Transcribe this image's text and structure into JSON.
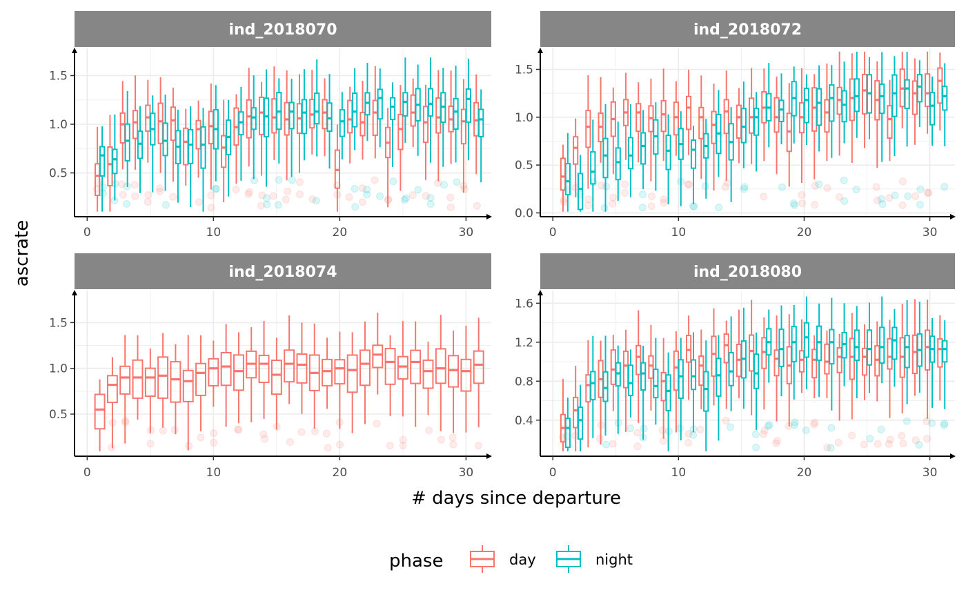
{
  "chart_data": {
    "type": "boxplot",
    "xlabel": "# days since departure",
    "ylabel": "ascrate",
    "legend": {
      "title": "phase",
      "placement": "bottom",
      "entries": [
        {
          "name": "day",
          "color": "#F8766D"
        },
        {
          "name": "night",
          "color": "#00BFC4"
        }
      ]
    },
    "grid": true,
    "x_ticks": [
      0,
      10,
      20,
      30
    ],
    "panels": [
      {
        "title": "ind_2018070",
        "xlim": [
          -1,
          32
        ],
        "ylim": [
          0.05,
          1.78
        ],
        "y_ticks": [
          0.5,
          1.0,
          1.5
        ],
        "y_tick_labels": [
          "0.5",
          "1.0",
          "1.5"
        ],
        "series": [
          {
            "name": "day",
            "x": [
              1,
              2,
              3,
              4,
              5,
              6,
              7,
              8,
              9,
              10,
              11,
              12,
              13,
              14,
              15,
              16,
              17,
              18,
              19,
              20,
              21,
              22,
              23,
              24,
              25,
              26,
              27,
              28,
              29,
              30,
              31
            ],
            "median": [
              0.47,
              0.59,
              1.0,
              1.02,
              1.07,
              1.03,
              1.04,
              0.82,
              0.95,
              0.98,
              0.76,
              0.97,
              1.08,
              1.12,
              1.07,
              1.05,
              1.06,
              1.1,
              1.12,
              0.53,
              1.05,
              1.02,
              1.12,
              0.81,
              0.95,
              1.12,
              1.02,
              1.07,
              1.05,
              1.03,
              1.04
            ]
          },
          {
            "name": "night",
            "x": [
              1,
              2,
              3,
              4,
              5,
              6,
              7,
              8,
              9,
              10,
              11,
              12,
              13,
              14,
              15,
              16,
              17,
              18,
              19,
              20,
              21,
              22,
              23,
              24,
              25,
              26,
              27,
              28,
              29,
              30,
              31
            ],
            "median": [
              0.68,
              0.64,
              0.83,
              0.8,
              0.95,
              0.83,
              0.77,
              0.79,
              0.79,
              0.95,
              0.87,
              1.02,
              1.07,
              1.08,
              1.13,
              1.13,
              1.12,
              1.13,
              1.06,
              1.03,
              1.13,
              1.22,
              1.27,
              1.18,
              1.23,
              1.2,
              1.21,
              1.18,
              1.13,
              1.26,
              1.05
            ]
          }
        ]
      },
      {
        "title": "ind_2018072",
        "xlim": [
          -1,
          32
        ],
        "ylim": [
          -0.04,
          1.72
        ],
        "y_ticks": [
          0.0,
          0.5,
          1.0,
          1.5
        ],
        "y_tick_labels": [
          "0.0",
          "0.5",
          "1.0",
          "1.5"
        ],
        "series": [
          {
            "name": "day",
            "x": [
              1,
              2,
              3,
              4,
              5,
              6,
              7,
              8,
              9,
              10,
              11,
              12,
              13,
              14,
              15,
              16,
              17,
              18,
              19,
              20,
              21,
              22,
              23,
              24,
              25,
              26,
              27,
              28,
              29,
              30,
              31
            ],
            "median": [
              0.38,
              0.68,
              0.9,
              0.9,
              0.98,
              1.05,
              1.05,
              0.99,
              1.03,
              1.0,
              1.1,
              1.0,
              0.92,
              1.06,
              1.0,
              1.0,
              1.1,
              1.0,
              0.85,
              1.0,
              1.1,
              1.05,
              1.18,
              1.2,
              1.28,
              1.18,
              0.98,
              1.3,
              1.25,
              1.25,
              1.38
            ]
          },
          {
            "name": "night",
            "x": [
              1,
              2,
              3,
              4,
              5,
              6,
              7,
              8,
              9,
              10,
              11,
              12,
              13,
              14,
              15,
              16,
              17,
              18,
              19,
              20,
              21,
              22,
              23,
              24,
              25,
              26,
              27,
              28,
              29,
              30,
              31
            ],
            "median": [
              0.33,
              0.25,
              0.43,
              0.6,
              0.53,
              0.6,
              0.7,
              0.8,
              0.65,
              0.72,
              0.66,
              0.7,
              0.83,
              0.74,
              0.9,
              1.0,
              1.1,
              1.08,
              1.2,
              1.18,
              1.15,
              1.2,
              1.13,
              1.22,
              1.25,
              1.22,
              1.25,
              1.3,
              1.32,
              1.12,
              1.22
            ]
          }
        ]
      },
      {
        "title": "ind_2018074",
        "xlim": [
          -1,
          32
        ],
        "ylim": [
          0.04,
          1.85
        ],
        "y_ticks": [
          0.5,
          1.0,
          1.5
        ],
        "y_tick_labels": [
          "0.5",
          "1.0",
          "1.5"
        ],
        "series": [
          {
            "name": "day",
            "x": [
              1,
              2,
              3,
              4,
              5,
              6,
              7,
              8,
              9,
              10,
              11,
              12,
              13,
              14,
              15,
              16,
              17,
              18,
              19,
              20,
              21,
              22,
              23,
              24,
              25,
              26,
              27,
              28,
              29,
              30,
              31
            ],
            "median": [
              0.55,
              0.82,
              0.9,
              0.9,
              0.9,
              0.92,
              0.88,
              0.86,
              0.95,
              1.0,
              1.02,
              0.97,
              1.05,
              1.05,
              0.93,
              1.05,
              1.04,
              0.95,
              0.97,
              1.0,
              0.98,
              1.05,
              1.15,
              1.07,
              1.02,
              1.07,
              0.97,
              1.0,
              0.98,
              0.97,
              1.04
            ]
          }
        ]
      },
      {
        "title": "ind_2018080",
        "xlim": [
          -1,
          32
        ],
        "ylim": [
          0.03,
          1.73
        ],
        "y_ticks": [
          0.4,
          0.8,
          1.2,
          1.6
        ],
        "y_tick_labels": [
          "0.4",
          "0.8",
          "1.2",
          "1.6"
        ],
        "series": [
          {
            "name": "day",
            "x": [
              1,
              2,
              3,
              4,
              5,
              6,
              7,
              8,
              9,
              10,
              11,
              12,
              13,
              14,
              15,
              16,
              17,
              18,
              19,
              20,
              21,
              22,
              23,
              24,
              25,
              26,
              27,
              28,
              29,
              30,
              31
            ],
            "median": [
              0.32,
              0.5,
              0.76,
              0.82,
              0.92,
              0.96,
              1.05,
              0.96,
              0.8,
              0.94,
              1.12,
              0.96,
              1.08,
              1.17,
              1.02,
              1.11,
              1.1,
              1.03,
              0.96,
              1.02,
              1.02,
              1.0,
              1.05,
              1.05,
              1.05,
              1.02,
              1.05,
              1.05,
              1.1,
              1.15,
              1.13
            ]
          },
          {
            "name": "night",
            "x": [
              1,
              2,
              3,
              4,
              5,
              6,
              7,
              8,
              9,
              10,
              11,
              12,
              13,
              14,
              15,
              16,
              17,
              18,
              19,
              20,
              21,
              22,
              23,
              24,
              25,
              26,
              27,
              28,
              29,
              30,
              31
            ],
            "median": [
              0.32,
              0.4,
              0.78,
              0.73,
              0.88,
              0.78,
              0.88,
              0.75,
              0.7,
              0.85,
              0.85,
              0.72,
              0.86,
              0.9,
              1.03,
              0.88,
              1.2,
              1.13,
              1.2,
              1.25,
              1.2,
              1.2,
              1.18,
              1.15,
              1.13,
              1.15,
              1.22,
              1.15,
              1.12,
              1.13,
              1.13
            ]
          }
        ]
      }
    ]
  }
}
